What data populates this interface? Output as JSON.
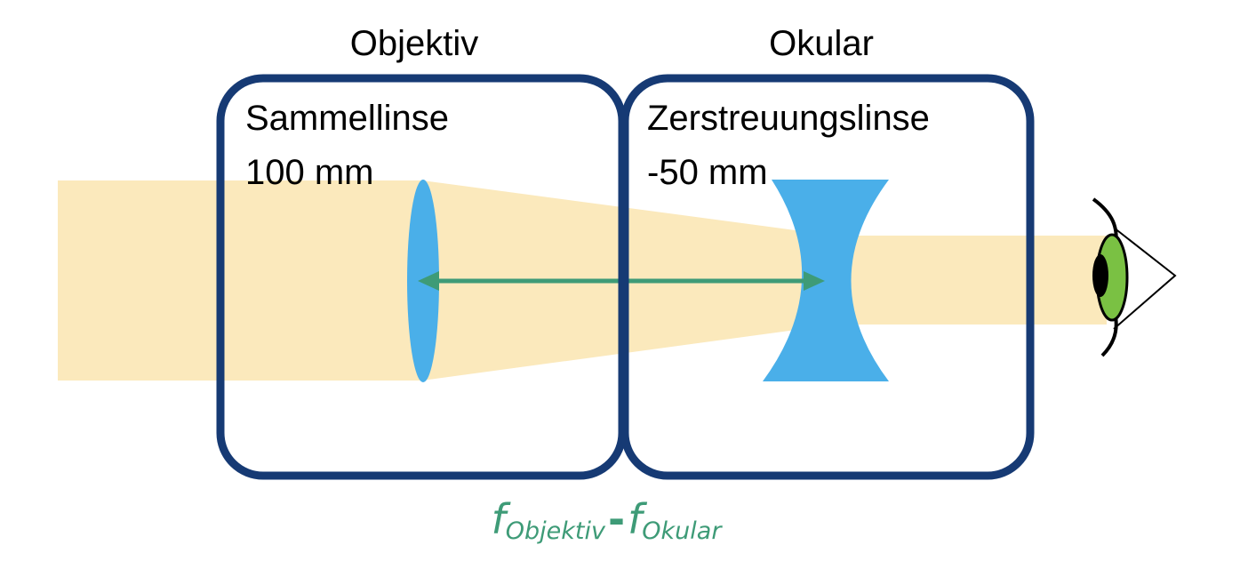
{
  "objective": {
    "title": "Objektiv",
    "lens_type": "Sammellinse",
    "focal_length": "100 mm"
  },
  "eyepiece": {
    "title": "Okular",
    "lens_type": "Zerstreuungslinse",
    "focal_length": "-50 mm"
  },
  "formula": {
    "f1": "f",
    "sub1": "Objektiv",
    "minus": "-",
    "f2": "f",
    "sub2": "Okular"
  },
  "colors": {
    "light_beam": "#fbe9bc",
    "frame": "#163a74",
    "lens": "#4aafe9",
    "arrow": "#3e9b77",
    "iris": "#7ac143",
    "pupil": "#000000"
  }
}
